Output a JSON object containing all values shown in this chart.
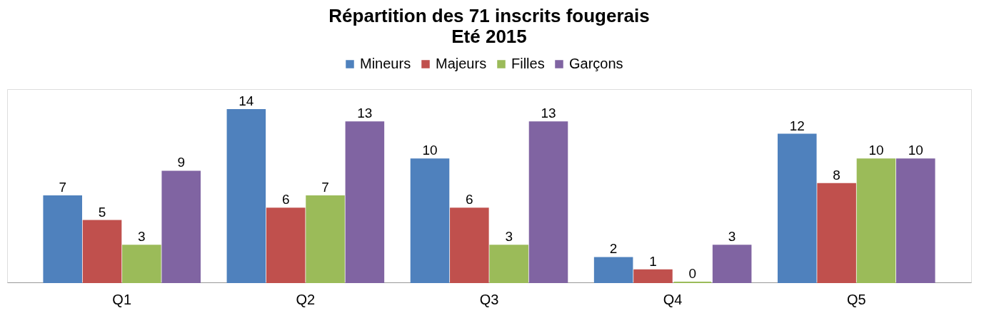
{
  "chart_data": {
    "type": "bar",
    "title": "Répartition des 71 inscrits fougerais",
    "subtitle": "Eté 2015",
    "categories": [
      "Q1",
      "Q2",
      "Q3",
      "Q4",
      "Q5"
    ],
    "series": [
      {
        "name": "Mineurs",
        "color": "#4f81bd",
        "values": [
          7,
          14,
          10,
          2,
          12
        ]
      },
      {
        "name": "Majeurs",
        "color": "#c0504d",
        "values": [
          5,
          6,
          6,
          1,
          8
        ]
      },
      {
        "name": "Filles",
        "color": "#9bbb59",
        "values": [
          3,
          7,
          3,
          0,
          10
        ]
      },
      {
        "name": "Garçons",
        "color": "#8064a2",
        "values": [
          9,
          13,
          13,
          3,
          10
        ]
      }
    ],
    "data_labels": true,
    "legend": "top",
    "grid": false,
    "tick_labels": "x"
  }
}
